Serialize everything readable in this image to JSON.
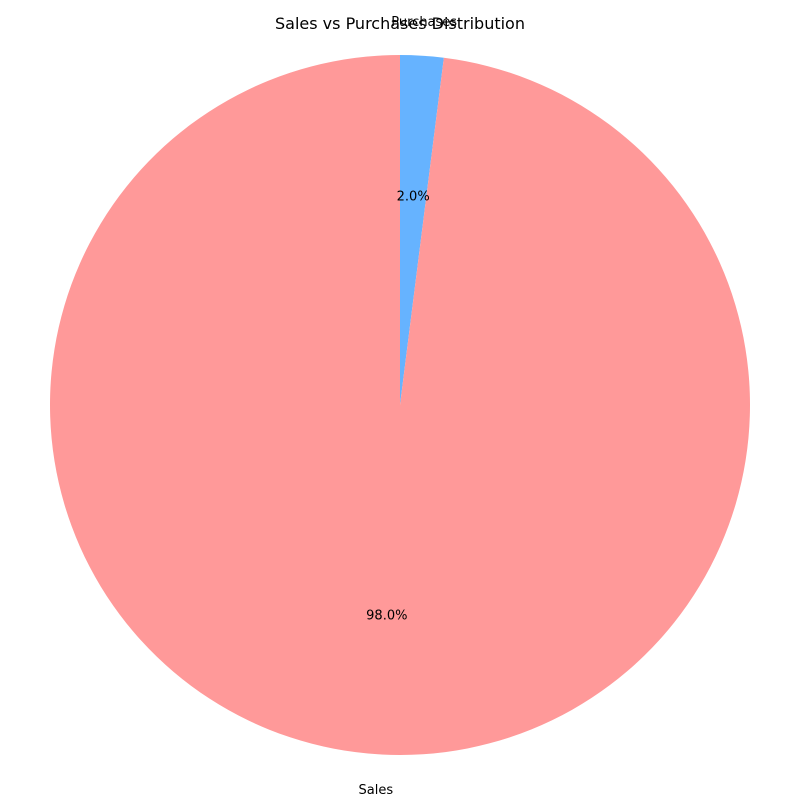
{
  "chart_data": {
    "type": "pie",
    "title": "Sales vs Purchases Distribution",
    "slices": [
      {
        "label": "Purchases",
        "value": 2.0,
        "percent_label": "2.0%",
        "color": "#66b3ff"
      },
      {
        "label": "Sales",
        "value": 98.0,
        "percent_label": "98.0%",
        "color": "#ff9999"
      }
    ],
    "start_angle_deg": 90,
    "direction": "clockwise",
    "legend": "none"
  }
}
